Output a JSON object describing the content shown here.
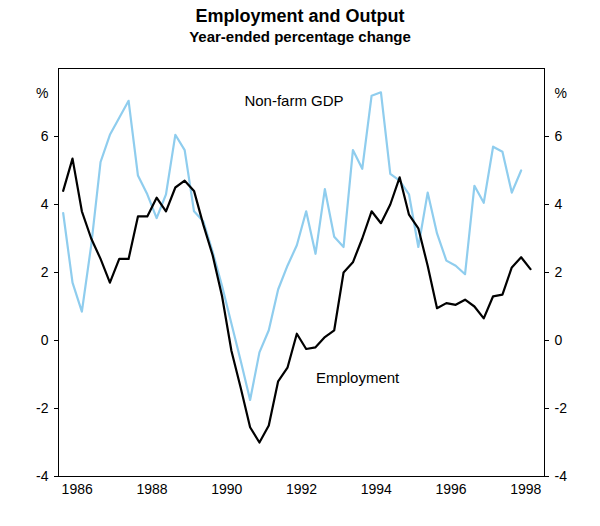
{
  "chart_data": {
    "type": "line",
    "title": "Employment and Output",
    "subtitle": "Year-ended percentage change",
    "ylabel": "%",
    "x": [
      1986.125,
      1986.375,
      1986.625,
      1986.875,
      1987.125,
      1987.375,
      1987.625,
      1987.875,
      1988.125,
      1988.375,
      1988.625,
      1988.875,
      1989.125,
      1989.375,
      1989.625,
      1989.875,
      1990.125,
      1990.375,
      1990.625,
      1990.875,
      1991.125,
      1991.375,
      1991.625,
      1991.875,
      1992.125,
      1992.375,
      1992.625,
      1992.875,
      1993.125,
      1993.375,
      1993.625,
      1993.875,
      1994.125,
      1994.375,
      1994.625,
      1994.875,
      1995.125,
      1995.375,
      1995.625,
      1995.875,
      1996.125,
      1996.375,
      1996.625,
      1996.875,
      1997.125,
      1997.375,
      1997.625,
      1997.875,
      1998.125,
      1998.375,
      1998.625
    ],
    "series": [
      {
        "name": "Non-farm GDP",
        "color": "#8fcdee",
        "values": [
          3.75,
          1.7,
          0.85,
          2.8,
          5.25,
          6.05,
          6.55,
          7.05,
          4.85,
          4.3,
          3.6,
          4.3,
          6.05,
          5.6,
          3.8,
          3.5,
          2.6,
          1.6,
          0.5,
          -0.6,
          -1.75,
          -0.35,
          0.3,
          1.5,
          2.2,
          2.8,
          3.8,
          2.55,
          4.45,
          3.05,
          2.75,
          5.6,
          5.05,
          7.2,
          7.3,
          4.9,
          4.7,
          4.3,
          2.75,
          4.35,
          3.15,
          2.35,
          2.2,
          1.95,
          4.55,
          4.05,
          5.7,
          5.55,
          4.35,
          5.0,
          null
        ]
      },
      {
        "name": "Employment",
        "color": "#000000",
        "values": [
          4.4,
          5.35,
          3.8,
          3.0,
          2.4,
          1.7,
          2.4,
          2.4,
          3.65,
          3.65,
          4.2,
          3.8,
          4.5,
          4.7,
          4.4,
          3.4,
          2.5,
          1.3,
          -0.3,
          -1.4,
          -2.55,
          -3.0,
          -2.5,
          -1.2,
          -0.8,
          0.2,
          -0.25,
          -0.2,
          0.1,
          0.3,
          2.0,
          2.3,
          3.0,
          3.8,
          3.45,
          4.0,
          4.8,
          3.7,
          3.3,
          2.2,
          0.95,
          1.1,
          1.05,
          1.2,
          1.0,
          0.65,
          1.3,
          1.35,
          2.15,
          2.45,
          2.1
        ]
      }
    ],
    "xlim": [
      1986,
      1999
    ],
    "xticks": [
      {
        "value": 1986.5,
        "label": "1986"
      },
      {
        "value": 1988.5,
        "label": "1988"
      },
      {
        "value": 1990.5,
        "label": "1990"
      },
      {
        "value": 1992.5,
        "label": "1992"
      },
      {
        "value": 1994.5,
        "label": "1994"
      },
      {
        "value": 1996.5,
        "label": "1996"
      },
      {
        "value": 1998.5,
        "label": "1998"
      }
    ],
    "ylim": [
      -4,
      8
    ],
    "yticks": [
      -4,
      -2,
      0,
      2,
      4,
      6
    ],
    "grid": false
  }
}
